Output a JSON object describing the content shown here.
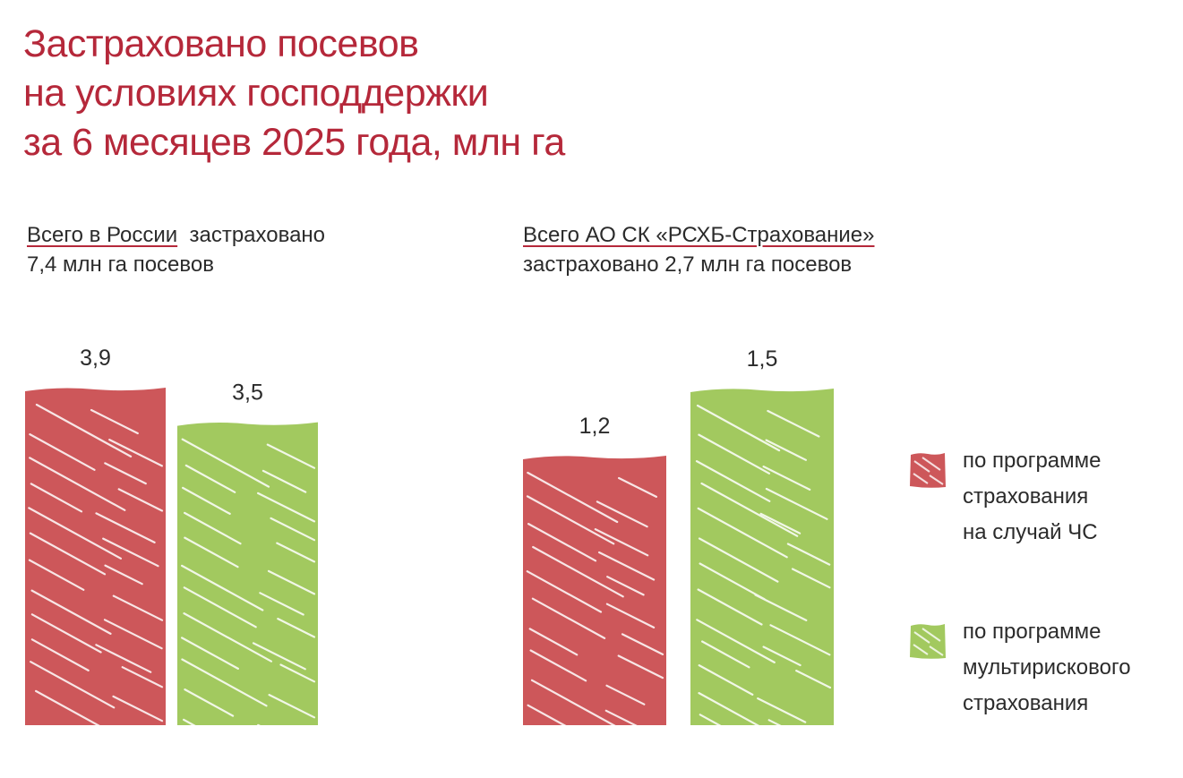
{
  "title": {
    "line1": "Застраховано посевов",
    "line2": "на условиях господдержки",
    "line3": "за 6 месяцев 2025 года, млн га"
  },
  "panels": [
    {
      "heading_underlined": "Всего в России",
      "heading_rest": "застраховано",
      "subheading": "7,4 млн га посевов"
    },
    {
      "heading_underlined": "Всего  АО СК «РСХБ-Страхование»",
      "heading_rest": "",
      "subheading": "застраховано 2,7 млн га посевов"
    }
  ],
  "legend": [
    {
      "lines": [
        "по программе",
        "страхования",
        "на случай ЧС"
      ],
      "color": "#cd575a"
    },
    {
      "lines": [
        "по программе",
        "мультирискового",
        "страхования"
      ],
      "color": "#a2c95f"
    }
  ],
  "colors": {
    "title": "#b5283a",
    "underline": "#b5283a",
    "series_red": "#cd575a",
    "series_green": "#a2c95f"
  },
  "chart_data": [
    {
      "type": "bar",
      "categories": [
        "Всего в России"
      ],
      "series": [
        {
          "values": [
            3.9
          ],
          "labels": [
            "3,9"
          ],
          "color": "#cd575a"
        },
        {
          "values": [
            3.5
          ],
          "labels": [
            "3,5"
          ],
          "color": "#a2c95f"
        }
      ],
      "ylim": [
        0,
        4.0
      ],
      "grid": false,
      "legend_position": "right"
    },
    {
      "type": "bar",
      "categories": [
        "Всего  АО СК «РСХБ-Страхование»"
      ],
      "series": [
        {
          "values": [
            1.2
          ],
          "labels": [
            "1,2"
          ],
          "color": "#cd575a"
        },
        {
          "values": [
            1.5
          ],
          "labels": [
            "1,5"
          ],
          "color": "#a2c95f"
        }
      ],
      "ylim": [
        0,
        1.6
      ],
      "grid": false,
      "legend_position": "right"
    }
  ]
}
